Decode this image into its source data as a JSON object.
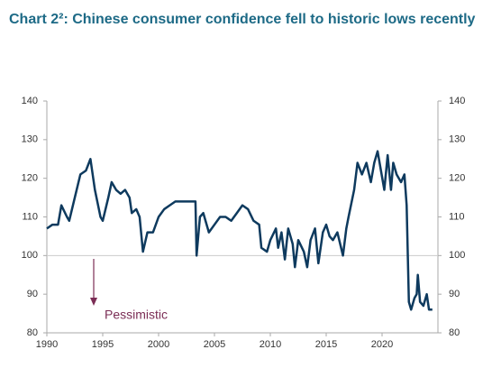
{
  "chart_data": {
    "type": "line",
    "title": "Chart 2²: Chinese consumer confidence fell to historic lows recently",
    "annotation": "Pessimistic",
    "x": [
      1990,
      1990.5,
      1991,
      1991.3,
      1991.8,
      1992,
      1992.5,
      1993,
      1993.5,
      1993.9,
      1994.3,
      1994.8,
      1995,
      1995.5,
      1995.8,
      1996.2,
      1996.6,
      1997,
      1997.4,
      1997.6,
      1998,
      1998.3,
      1998.6,
      1999,
      1999.5,
      2000,
      2000.5,
      2001,
      2001.5,
      2002,
      2002.5,
      2003,
      2003.3,
      2003.4,
      2003.7,
      2004,
      2004.5,
      2005,
      2005.5,
      2006,
      2006.5,
      2007,
      2007.5,
      2008,
      2008.5,
      2009,
      2009.2,
      2009.7,
      2010,
      2010.5,
      2010.7,
      2011,
      2011.3,
      2011.6,
      2012,
      2012.2,
      2012.5,
      2013,
      2013.3,
      2013.6,
      2014,
      2014.3,
      2014.7,
      2015,
      2015.3,
      2015.6,
      2016,
      2016.5,
      2016.8,
      2017,
      2017.5,
      2017.8,
      2018.2,
      2018.6,
      2019,
      2019.3,
      2019.6,
      2019.9,
      2020.2,
      2020.5,
      2020.8,
      2021,
      2021.3,
      2021.7,
      2022,
      2022.2,
      2022.4,
      2022.6,
      2022.9,
      2023.1,
      2023.2,
      2023.4,
      2023.7,
      2024,
      2024.2,
      2024.5
    ],
    "series": [
      {
        "name": "Consumer confidence",
        "color": "#0e3a5e",
        "values": [
          107,
          108,
          108,
          113,
          110,
          109,
          115,
          121,
          122,
          125,
          117,
          110,
          109,
          115,
          119,
          117,
          116,
          117,
          115,
          111,
          112,
          110,
          101,
          106,
          106,
          110,
          112,
          113,
          114,
          114,
          114,
          114,
          114,
          100,
          110,
          111,
          106,
          108,
          110,
          110,
          109,
          111,
          113,
          112,
          109,
          108,
          102,
          101,
          104,
          107,
          102,
          106,
          99,
          107,
          103,
          97,
          104,
          101,
          97,
          104,
          107,
          98,
          106,
          108,
          105,
          104,
          106,
          100,
          107,
          110,
          117,
          124,
          121,
          124,
          119,
          124,
          127,
          122,
          117,
          126,
          117,
          124,
          121,
          119,
          121,
          113,
          88,
          86,
          89,
          90,
          95,
          88,
          87,
          90,
          86,
          86
        ]
      }
    ],
    "xlim": [
      1990,
      2025
    ],
    "xticks": [
      1990,
      1995,
      2000,
      2005,
      2010,
      2015,
      2020
    ],
    "ylim": [
      80,
      140
    ],
    "yticks": [
      80,
      90,
      100,
      110,
      120,
      130,
      140
    ],
    "y2lim": [
      80,
      140
    ],
    "y2ticks": [
      80,
      90,
      100,
      110,
      120,
      130,
      140
    ]
  }
}
